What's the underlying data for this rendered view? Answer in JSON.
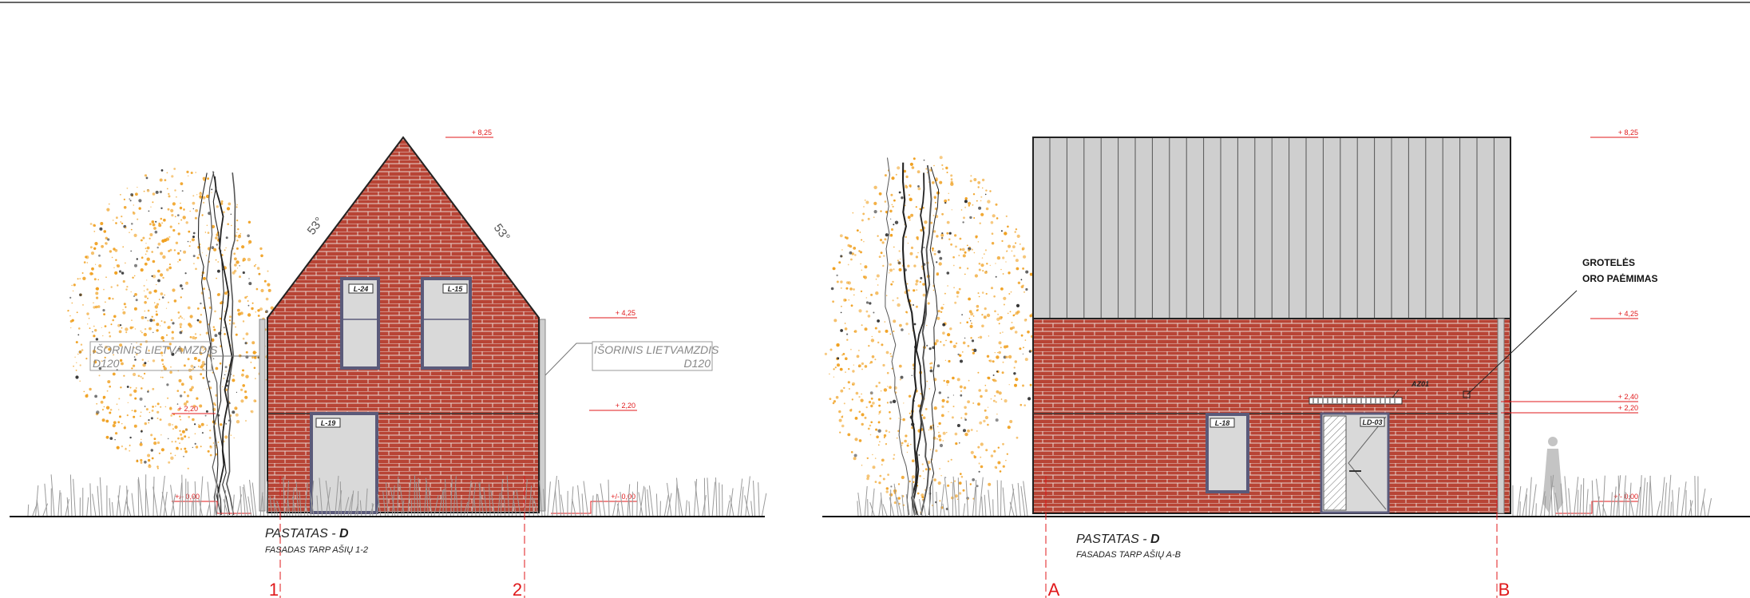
{
  "colors": {
    "brick": "#b84435",
    "mortar": "#e8d5cf",
    "level_red": "#e0191b",
    "roof_panel": "#cfcfcf",
    "foliage": "#f0a020",
    "window_glass": "#d9d9d9",
    "window_frame": "#5a5a7a"
  },
  "icons": [
    "tree-icon",
    "grass-icon",
    "person-silhouette-icon"
  ],
  "left": {
    "title_prefix": "PASTATAS - ",
    "title_bold": "D",
    "subtitle": "FASADAS TARP AŠIŲ 1-2",
    "levels": [
      "+ 8,25",
      "+ 4,25",
      "+ 2,20",
      "+/- 0,00"
    ],
    "ground_label": "+/- 0,00",
    "left_level_label": "+ 2,20",
    "roof_angle_left": "53°",
    "roof_angle_right": "53°",
    "callout_left_line1": "IŠORINIS LIETVAMZDIS",
    "callout_left_line2": "D120",
    "callout_right_line1": "IŠORINIS LIETVAMZDIS",
    "callout_right_line2": "D120",
    "windows": [
      "L-24",
      "L-15",
      "L-19"
    ],
    "axes": [
      "1",
      "2"
    ]
  },
  "right": {
    "title_prefix": "PASTATAS - ",
    "title_bold": "D",
    "subtitle": "FASADAS TARP AŠIŲ A-B",
    "levels": [
      "+ 8,25",
      "+ 4,25",
      "+ 2,40",
      "+ 2,20",
      "+/- 0,00"
    ],
    "note_line1": "GROTELĖS",
    "note_line2": "ORO PAĖMIMAS",
    "vent_label": "AZ01",
    "windows": [
      "L-18",
      "LD-03"
    ],
    "axes": [
      "A",
      "B"
    ]
  }
}
